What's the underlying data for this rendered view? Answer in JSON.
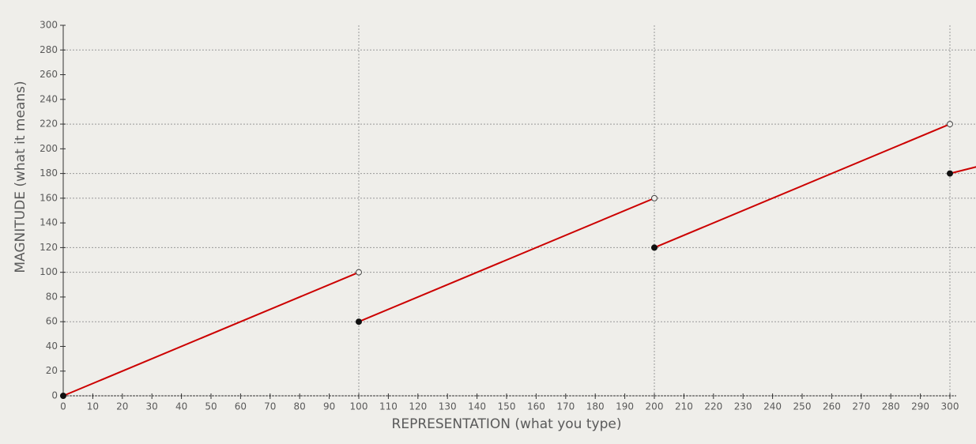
{
  "chart_data": {
    "type": "line",
    "x_label": "REPRESENTATION (what you type)",
    "y_label": "MAGNITUDE (what it means)",
    "xlim": [
      0,
      300
    ],
    "ylim": [
      0,
      300
    ],
    "xticks": [
      0,
      10,
      20,
      30,
      40,
      50,
      60,
      70,
      80,
      90,
      100,
      110,
      120,
      130,
      140,
      150,
      160,
      170,
      180,
      190,
      200,
      210,
      220,
      230,
      240,
      250,
      260,
      270,
      280,
      290,
      300
    ],
    "yticks": [
      0,
      20,
      40,
      60,
      80,
      100,
      120,
      140,
      160,
      180,
      200,
      220,
      240,
      260,
      280,
      300
    ],
    "grid_x": [
      100,
      200,
      300
    ],
    "grid_y": [
      60,
      100,
      120,
      160,
      180,
      220,
      280
    ],
    "color": "#cc0000",
    "segments": [
      {
        "x": [
          0,
          100
        ],
        "values": [
          0,
          100
        ]
      },
      {
        "x": [
          100,
          200
        ],
        "values": [
          60,
          160
        ]
      },
      {
        "x": [
          200,
          300
        ],
        "values": [
          120,
          220
        ]
      },
      {
        "x": [
          300,
          310
        ],
        "values": [
          180,
          186
        ]
      }
    ],
    "filled_points": {
      "x": [
        0,
        100,
        200,
        300
      ],
      "values": [
        0,
        60,
        120,
        180
      ]
    },
    "open_points": {
      "x": [
        100,
        200,
        300
      ],
      "values": [
        100,
        160,
        220
      ]
    }
  }
}
